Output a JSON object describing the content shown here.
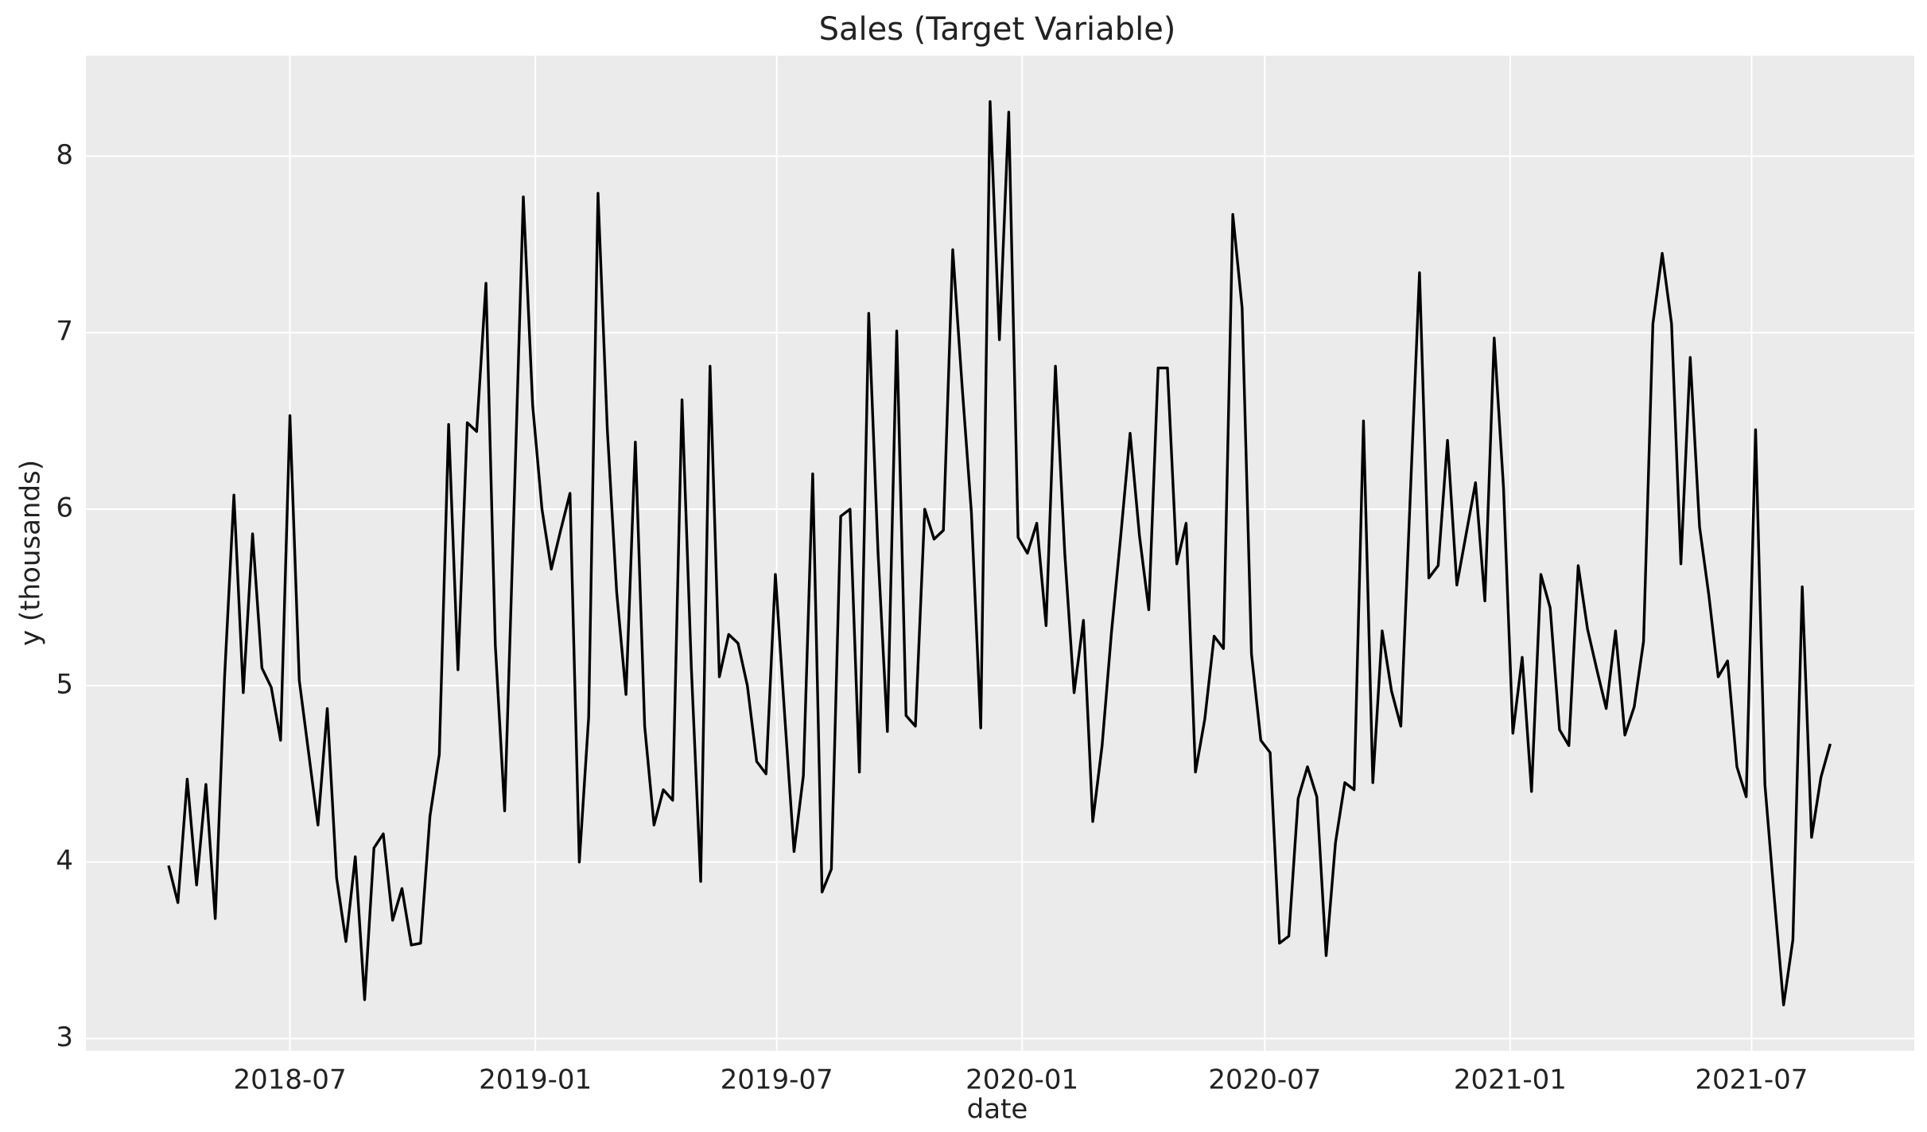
{
  "chart_data": {
    "type": "line",
    "title": "Sales (Target Variable)",
    "xlabel": "date",
    "ylabel": "y (thousands)",
    "color": "#000000",
    "grid": true,
    "background": "#ebebeb",
    "xlim": [
      "2018-01-29",
      "2021-10-31"
    ],
    "xticks": [
      "2018-07",
      "2019-01",
      "2019-07",
      "2020-01",
      "2020-07",
      "2021-01",
      "2021-07"
    ],
    "ylim": [
      2.93,
      8.57
    ],
    "yticks": [
      3,
      4,
      5,
      6,
      7,
      8
    ],
    "x": [
      "2018-04-01",
      "2018-04-08",
      "2018-04-15",
      "2018-04-22",
      "2018-04-29",
      "2018-05-06",
      "2018-05-13",
      "2018-05-20",
      "2018-05-27",
      "2018-06-03",
      "2018-06-10",
      "2018-06-17",
      "2018-06-24",
      "2018-07-01",
      "2018-07-08",
      "2018-07-15",
      "2018-07-22",
      "2018-07-29",
      "2018-08-05",
      "2018-08-12",
      "2018-08-19",
      "2018-08-26",
      "2018-09-02",
      "2018-09-09",
      "2018-09-16",
      "2018-09-23",
      "2018-09-30",
      "2018-10-07",
      "2018-10-14",
      "2018-10-21",
      "2018-10-28",
      "2018-11-04",
      "2018-11-11",
      "2018-11-18",
      "2018-11-25",
      "2018-12-02",
      "2018-12-09",
      "2018-12-16",
      "2018-12-23",
      "2018-12-30",
      "2019-01-06",
      "2019-01-13",
      "2019-01-20",
      "2019-01-27",
      "2019-02-03",
      "2019-02-10",
      "2019-02-17",
      "2019-02-24",
      "2019-03-03",
      "2019-03-10",
      "2019-03-17",
      "2019-03-24",
      "2019-03-31",
      "2019-04-07",
      "2019-04-14",
      "2019-04-21",
      "2019-04-28",
      "2019-05-05",
      "2019-05-12",
      "2019-05-19",
      "2019-05-26",
      "2019-06-02",
      "2019-06-09",
      "2019-06-16",
      "2019-06-23",
      "2019-06-30",
      "2019-07-07",
      "2019-07-14",
      "2019-07-21",
      "2019-07-28",
      "2019-08-04",
      "2019-08-11",
      "2019-08-18",
      "2019-08-25",
      "2019-09-01",
      "2019-09-08",
      "2019-09-15",
      "2019-09-22",
      "2019-09-29",
      "2019-10-06",
      "2019-10-13",
      "2019-10-20",
      "2019-10-27",
      "2019-11-03",
      "2019-11-10",
      "2019-11-17",
      "2019-11-24",
      "2019-12-01",
      "2019-12-08",
      "2019-12-15",
      "2019-12-22",
      "2019-12-29",
      "2020-01-05",
      "2020-01-12",
      "2020-01-19",
      "2020-01-26",
      "2020-02-02",
      "2020-02-09",
      "2020-02-16",
      "2020-02-23",
      "2020-03-01",
      "2020-03-08",
      "2020-03-15",
      "2020-03-22",
      "2020-03-29",
      "2020-04-05",
      "2020-04-12",
      "2020-04-19",
      "2020-04-26",
      "2020-05-03",
      "2020-05-10",
      "2020-05-17",
      "2020-05-24",
      "2020-05-31",
      "2020-06-07",
      "2020-06-14",
      "2020-06-21",
      "2020-06-28",
      "2020-07-05",
      "2020-07-12",
      "2020-07-19",
      "2020-07-26",
      "2020-08-02",
      "2020-08-09",
      "2020-08-16",
      "2020-08-23",
      "2020-08-30",
      "2020-09-06",
      "2020-09-13",
      "2020-09-20",
      "2020-09-27",
      "2020-10-04",
      "2020-10-11",
      "2020-10-18",
      "2020-10-25",
      "2020-11-01",
      "2020-11-08",
      "2020-11-15",
      "2020-11-22",
      "2020-11-29",
      "2020-12-06",
      "2020-12-13",
      "2020-12-20",
      "2020-12-27",
      "2021-01-03",
      "2021-01-10",
      "2021-01-17",
      "2021-01-24",
      "2021-01-31",
      "2021-02-07",
      "2021-02-14",
      "2021-02-21",
      "2021-02-28",
      "2021-03-07",
      "2021-03-14",
      "2021-03-21",
      "2021-03-28",
      "2021-04-04",
      "2021-04-11",
      "2021-04-18",
      "2021-04-25",
      "2021-05-02",
      "2021-05-09",
      "2021-05-16",
      "2021-05-23",
      "2021-05-30",
      "2021-06-06",
      "2021-06-13",
      "2021-06-20",
      "2021-06-27",
      "2021-07-04",
      "2021-07-11",
      "2021-07-18",
      "2021-07-25",
      "2021-08-01",
      "2021-08-08",
      "2021-08-15",
      "2021-08-22",
      "2021-08-29"
    ],
    "values": [
      3.98,
      3.77,
      4.47,
      3.87,
      4.44,
      3.68,
      5.05,
      6.08,
      4.96,
      5.86,
      5.1,
      4.99,
      4.69,
      6.53,
      5.03,
      4.62,
      4.21,
      4.87,
      3.91,
      3.55,
      4.03,
      3.22,
      4.08,
      4.16,
      3.67,
      3.85,
      3.53,
      3.54,
      4.26,
      4.61,
      6.48,
      5.09,
      6.49,
      6.44,
      7.28,
      5.23,
      4.29,
      6.0,
      7.77,
      6.59,
      6.0,
      5.66,
      5.88,
      6.09,
      4.0,
      4.82,
      7.79,
      6.45,
      5.53,
      4.95,
      6.38,
      4.77,
      4.21,
      4.41,
      4.35,
      6.62,
      5.1,
      3.89,
      6.81,
      5.05,
      5.29,
      5.24,
      5.0,
      4.57,
      4.5,
      5.63,
      4.83,
      4.06,
      4.49,
      6.2,
      3.83,
      3.96,
      5.96,
      6.0,
      4.51,
      7.11,
      5.75,
      4.74,
      7.01,
      4.83,
      4.77,
      6.0,
      5.83,
      5.88,
      7.47,
      6.7,
      5.98,
      4.76,
      8.31,
      6.96,
      8.25,
      5.84,
      5.75,
      5.92,
      5.34,
      6.81,
      5.75,
      4.96,
      5.37,
      4.23,
      4.66,
      5.3,
      5.85,
      6.43,
      5.85,
      5.43,
      6.8,
      6.8,
      5.69,
      5.92,
      4.51,
      4.81,
      5.28,
      5.21,
      7.67,
      7.14,
      5.18,
      4.69,
      4.62,
      3.54,
      3.58,
      4.36,
      4.54,
      4.37,
      3.47,
      4.11,
      4.45,
      4.41,
      6.5,
      4.45,
      5.31,
      4.97,
      4.77,
      6.06,
      7.34,
      5.61,
      5.68,
      6.39,
      5.57,
      5.86,
      6.15,
      5.48,
      6.97,
      6.12,
      4.73,
      5.16,
      4.4,
      5.63,
      5.44,
      4.75,
      4.66,
      5.68,
      5.32,
      5.09,
      4.87,
      5.31,
      4.72,
      4.88,
      5.25,
      7.05,
      7.45,
      7.05,
      5.69,
      6.86,
      5.9,
      5.51,
      5.05,
      5.14,
      4.54,
      4.37,
      6.45,
      4.44,
      3.8,
      3.19,
      3.56,
      5.56,
      4.14,
      4.48,
      4.67
    ]
  }
}
